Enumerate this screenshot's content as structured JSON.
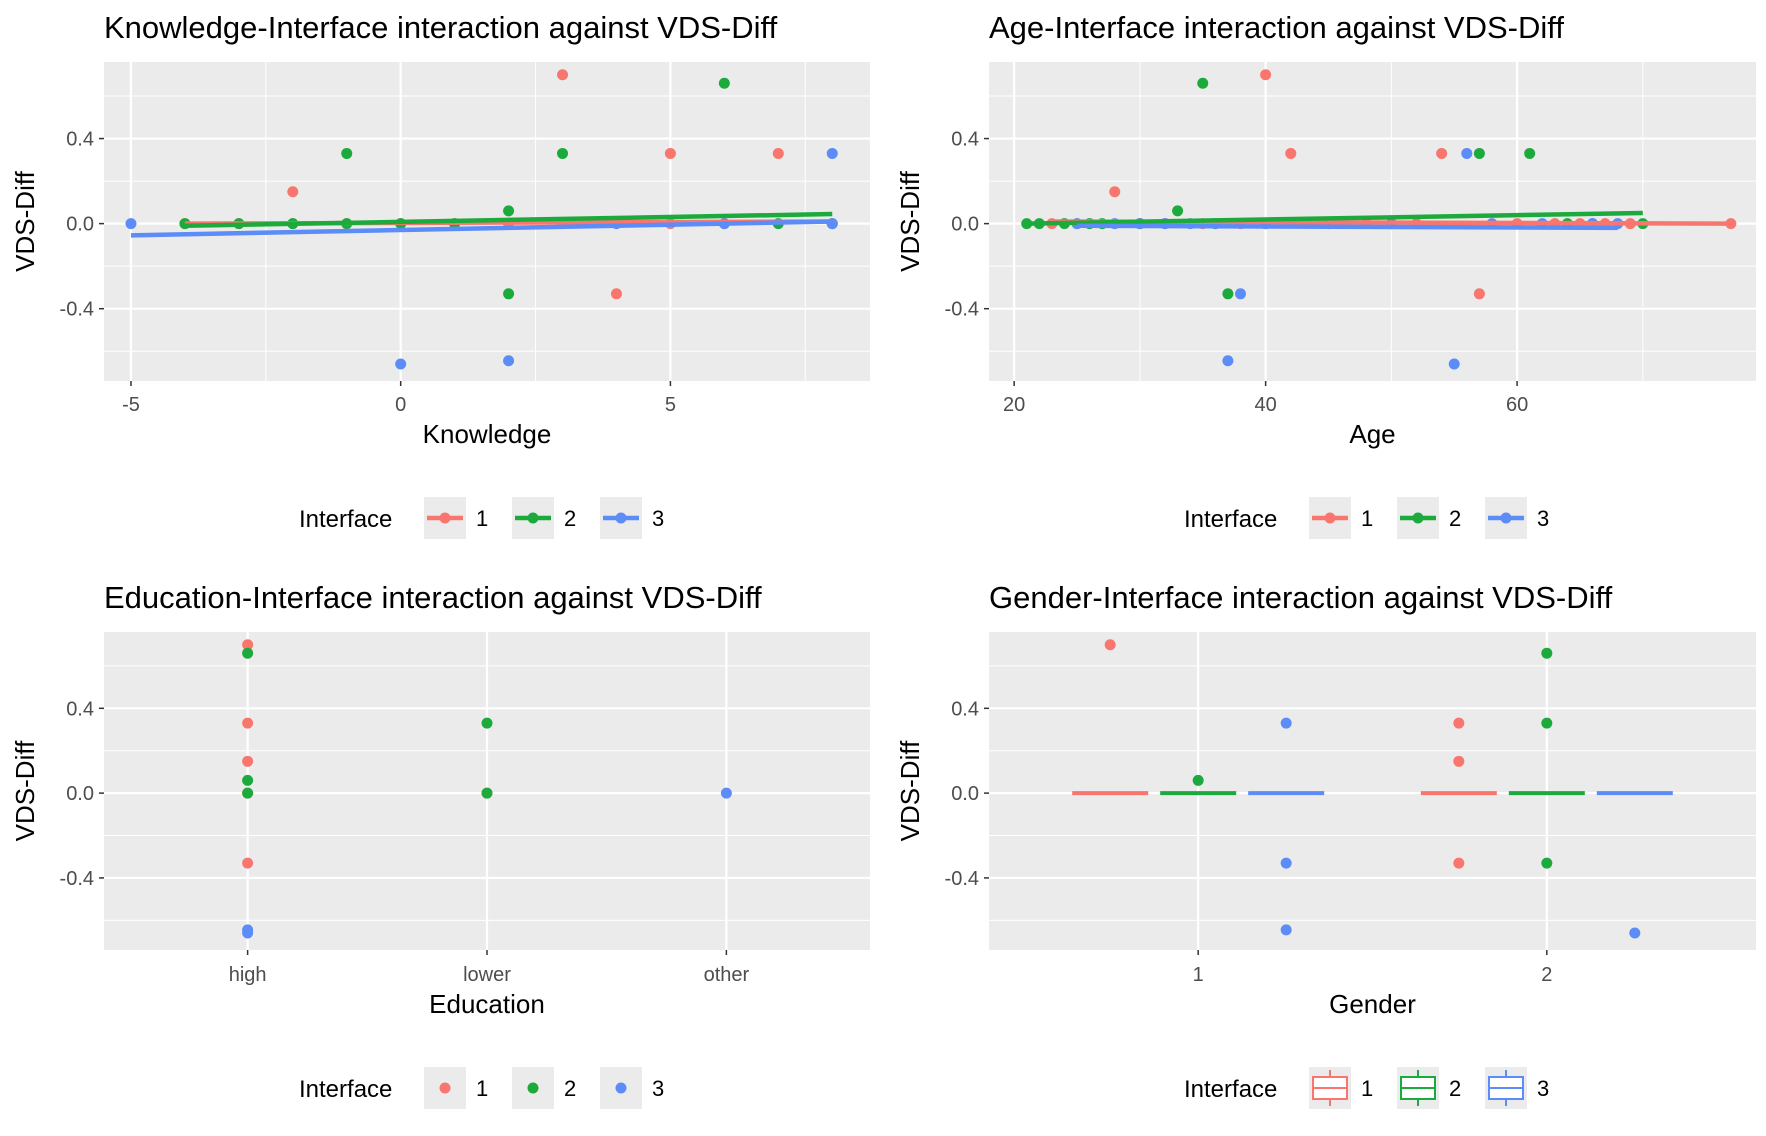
{
  "colors": {
    "interface_1": "#F8766D",
    "interface_2": "#1DAA3C",
    "interface_3": "#5B8CF7",
    "panel_bg": "#EBEBEB",
    "grid": "#FFFFFF",
    "key_bg": "#EBEBEB",
    "tick_text": "#4D4D4D"
  },
  "chart_data": [
    {
      "type": "scatter",
      "overlay": "regression-line",
      "title": "Knowledge-Interface interaction against VDS-Diff",
      "xlabel": "Knowledge",
      "ylabel": "VDS-Diff",
      "xlim": [
        -5.5,
        8.7
      ],
      "ylim": [
        -0.74,
        0.76
      ],
      "xticks": [
        -5,
        0,
        5
      ],
      "xtick_labels": [
        "-5",
        "0",
        "5"
      ],
      "yticks": [
        -0.4,
        0.0,
        0.4
      ],
      "ytick_labels": [
        "-0.4",
        "0.0",
        "0.4"
      ],
      "grid": true,
      "legend": {
        "title": "Interface",
        "placement": "bottom",
        "key": "point-line",
        "labels": [
          "1",
          "2",
          "3"
        ]
      },
      "series": [
        {
          "name": "1",
          "points": [
            [
              -4,
              0
            ],
            [
              -3,
              0
            ],
            [
              -2,
              0.15
            ],
            [
              -2,
              0
            ],
            [
              -1,
              0
            ],
            [
              0,
              0
            ],
            [
              1,
              0
            ],
            [
              2,
              0
            ],
            [
              3,
              0.7
            ],
            [
              3,
              0
            ],
            [
              4,
              -0.33
            ],
            [
              5,
              0.33
            ],
            [
              5,
              0
            ],
            [
              6,
              0
            ],
            [
              7,
              0.33
            ],
            [
              8,
              0
            ]
          ],
          "line": [
            [
              -4,
              0.0
            ],
            [
              8,
              0.01
            ]
          ]
        },
        {
          "name": "2",
          "points": [
            [
              -4,
              0
            ],
            [
              -3,
              0
            ],
            [
              -2,
              0
            ],
            [
              -1,
              0.33
            ],
            [
              -1,
              0
            ],
            [
              0,
              0
            ],
            [
              1,
              0
            ],
            [
              2,
              0.06
            ],
            [
              2,
              -0.33
            ],
            [
              3,
              0.33
            ],
            [
              6,
              0.66
            ],
            [
              7,
              0
            ],
            [
              8,
              0
            ]
          ],
          "line": [
            [
              -4,
              -0.01
            ],
            [
              8,
              0.045
            ]
          ]
        },
        {
          "name": "3",
          "points": [
            [
              -5,
              0
            ],
            [
              0,
              -0.66
            ],
            [
              2,
              -0.645
            ],
            [
              4,
              0
            ],
            [
              6,
              0
            ],
            [
              8,
              0.33
            ],
            [
              8,
              0
            ]
          ],
          "line": [
            [
              -5,
              -0.055
            ],
            [
              8,
              0.01
            ]
          ]
        }
      ]
    },
    {
      "type": "scatter",
      "overlay": "regression-line",
      "title": "Age-Interface interaction against VDS-Diff",
      "xlabel": "Age",
      "ylabel": "VDS-Diff",
      "xlim": [
        18,
        79
      ],
      "ylim": [
        -0.74,
        0.76
      ],
      "xticks": [
        20,
        40,
        60
      ],
      "xtick_labels": [
        "20",
        "40",
        "60"
      ],
      "yticks": [
        -0.4,
        0.0,
        0.4
      ],
      "ytick_labels": [
        "-0.4",
        "0.0",
        "0.4"
      ],
      "grid": true,
      "legend": {
        "title": "Interface",
        "placement": "bottom",
        "key": "point-line",
        "labels": [
          "1",
          "2",
          "3"
        ]
      },
      "series": [
        {
          "name": "1",
          "points": [
            [
              23,
              0
            ],
            [
              25,
              0
            ],
            [
              28,
              0.15
            ],
            [
              30,
              0
            ],
            [
              32,
              0
            ],
            [
              35,
              0
            ],
            [
              38,
              0
            ],
            [
              40,
              0.7
            ],
            [
              42,
              0.33
            ],
            [
              45,
              0
            ],
            [
              48,
              0
            ],
            [
              50,
              0
            ],
            [
              52,
              0
            ],
            [
              54,
              0.33
            ],
            [
              57,
              -0.33
            ],
            [
              60,
              0
            ],
            [
              63,
              0
            ],
            [
              65,
              0
            ],
            [
              67,
              0
            ],
            [
              69,
              0
            ],
            [
              77,
              0
            ]
          ],
          "line": [
            [
              23,
              0.01
            ],
            [
              77,
              0.0
            ]
          ]
        },
        {
          "name": "2",
          "points": [
            [
              21,
              0
            ],
            [
              22,
              0
            ],
            [
              24,
              0
            ],
            [
              26,
              0
            ],
            [
              27,
              0
            ],
            [
              30,
              0
            ],
            [
              33,
              0.06
            ],
            [
              35,
              0.66
            ],
            [
              36,
              0
            ],
            [
              37,
              -0.33
            ],
            [
              40,
              0
            ],
            [
              50,
              0
            ],
            [
              57,
              0.33
            ],
            [
              61,
              0.33
            ],
            [
              64,
              0
            ],
            [
              66,
              0
            ],
            [
              70,
              0
            ]
          ],
          "line": [
            [
              21,
              0.0
            ],
            [
              70,
              0.05
            ]
          ]
        },
        {
          "name": "3",
          "points": [
            [
              25,
              0
            ],
            [
              28,
              0
            ],
            [
              30,
              0
            ],
            [
              32,
              0
            ],
            [
              34,
              0
            ],
            [
              36,
              0
            ],
            [
              37,
              -0.645
            ],
            [
              38,
              -0.33
            ],
            [
              40,
              0
            ],
            [
              45,
              0
            ],
            [
              50,
              0
            ],
            [
              55,
              -0.66
            ],
            [
              56,
              0.33
            ],
            [
              58,
              0
            ],
            [
              62,
              0
            ],
            [
              66,
              0
            ],
            [
              68,
              0
            ]
          ],
          "line": [
            [
              25,
              -0.01
            ],
            [
              68,
              -0.02
            ]
          ]
        }
      ]
    },
    {
      "type": "scatter",
      "title": "Education-Interface interaction against VDS-Diff",
      "xlabel": "Education",
      "ylabel": "VDS-Diff",
      "categories": [
        "high",
        "lower",
        "other"
      ],
      "ylim": [
        -0.74,
        0.76
      ],
      "yticks": [
        -0.4,
        0.0,
        0.4
      ],
      "ytick_labels": [
        "-0.4",
        "0.0",
        "0.4"
      ],
      "grid": true,
      "legend": {
        "title": "Interface",
        "placement": "bottom",
        "key": "point",
        "labels": [
          "1",
          "2",
          "3"
        ]
      },
      "series": [
        {
          "name": "1",
          "points": [
            [
              "high",
              0.7
            ],
            [
              "high",
              0.33
            ],
            [
              "high",
              0.15
            ],
            [
              "high",
              0
            ],
            [
              "high",
              -0.33
            ],
            [
              "lower",
              0
            ]
          ]
        },
        {
          "name": "2",
          "points": [
            [
              "high",
              0.66
            ],
            [
              "high",
              0.06
            ],
            [
              "high",
              0
            ],
            [
              "lower",
              0.33
            ],
            [
              "lower",
              0
            ]
          ]
        },
        {
          "name": "3",
          "points": [
            [
              "high",
              -0.645
            ],
            [
              "high",
              -0.66
            ],
            [
              "other",
              0
            ]
          ]
        }
      ]
    },
    {
      "type": "boxplot",
      "title": "Gender-Interface interaction against VDS-Diff",
      "xlabel": "Gender",
      "ylabel": "VDS-Diff",
      "categories": [
        "1",
        "2"
      ],
      "ylim": [
        -0.74,
        0.76
      ],
      "yticks": [
        -0.4,
        0.0,
        0.4
      ],
      "ytick_labels": [
        "-0.4",
        "0.0",
        "0.4"
      ],
      "grid": true,
      "legend": {
        "title": "Interface",
        "placement": "bottom",
        "key": "box",
        "labels": [
          "1",
          "2",
          "3"
        ]
      },
      "series": [
        {
          "name": "1",
          "medians": {
            "1": 0,
            "2": 0
          },
          "outliers": [
            [
              "1",
              0.7
            ],
            [
              "2",
              0.33
            ],
            [
              "2",
              0.15
            ],
            [
              "2",
              -0.33
            ]
          ]
        },
        {
          "name": "2",
          "medians": {
            "1": 0,
            "2": 0
          },
          "outliers": [
            [
              "1",
              0.06
            ],
            [
              "2",
              0.66
            ],
            [
              "2",
              0.33
            ],
            [
              "2",
              -0.33
            ]
          ]
        },
        {
          "name": "3",
          "medians": {
            "1": 0,
            "2": 0
          },
          "outliers": [
            [
              "1",
              0.33
            ],
            [
              "1",
              -0.33
            ],
            [
              "1",
              -0.645
            ],
            [
              "2",
              -0.66
            ]
          ]
        }
      ]
    }
  ]
}
